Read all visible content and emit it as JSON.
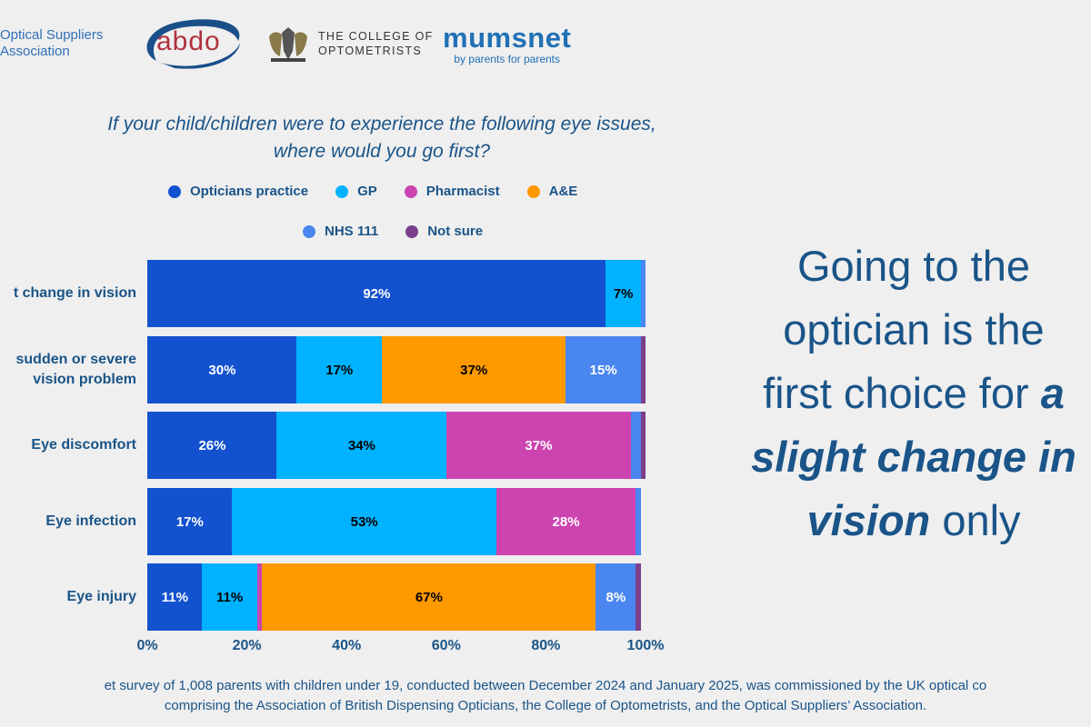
{
  "logos": {
    "osa": [
      "Optical Suppliers",
      "Association"
    ],
    "abdo": "abdo",
    "college": [
      "THE COLLEGE OF",
      "OPTOMETRISTS"
    ],
    "mumsnet": "mumsnet",
    "mumsnet_tagline": "by parents for parents"
  },
  "chart_data": {
    "type": "bar",
    "orientation": "horizontal",
    "stacked": true,
    "title": [
      "If your child/children were to experience the following eye issues,",
      "where would you go first?"
    ],
    "categories": [
      "t change in vision",
      "sudden or severe\nvision problem",
      "Eye discomfort",
      "Eye infection",
      "Eye injury"
    ],
    "series": [
      {
        "name": "Opticians practice",
        "color": "#1352cf",
        "label_color": "#ffffff",
        "values": [
          92,
          30,
          26,
          17,
          11
        ]
      },
      {
        "name": "GP",
        "color": "#00b2ff",
        "label_color": "#000000",
        "values": [
          7,
          17,
          34,
          53,
          11
        ]
      },
      {
        "name": "Pharmacist",
        "color": "#cc44b0",
        "label_color": "#ffffff",
        "values": [
          0,
          0,
          37,
          28,
          1
        ]
      },
      {
        "name": "A&E",
        "color": "#ff9900",
        "label_color": "#000000",
        "values": [
          0,
          37,
          0,
          0,
          67
        ]
      },
      {
        "name": "NHS 111",
        "color": "#4a86f0",
        "label_color": "#ffffff",
        "values": [
          1,
          15,
          2,
          1,
          8
        ]
      },
      {
        "name": "Not sure",
        "color": "#7b3f8c",
        "label_color": "#ffffff",
        "values": [
          0,
          1,
          1,
          0,
          1
        ]
      }
    ],
    "data_labels": [
      [
        "92%",
        "7%",
        "",
        "",
        "",
        ""
      ],
      [
        "30%",
        "17%",
        "",
        "37%",
        "15%",
        ""
      ],
      [
        "26%",
        "34%",
        "37%",
        "",
        "",
        ""
      ],
      [
        "17%",
        "53%",
        "28%",
        "",
        "",
        ""
      ],
      [
        "11%",
        "11%",
        "",
        "67%",
        "8%",
        ""
      ]
    ],
    "xlim": [
      0,
      100
    ],
    "xticks": [
      "0%",
      "20%",
      "40%",
      "60%",
      "80%",
      "100%"
    ],
    "legend_placement": "top",
    "grid": false
  },
  "headline": {
    "lines": [
      {
        "pre": "Going to the",
        "bold": "",
        "post": ""
      },
      {
        "pre": "optician is the",
        "bold": "",
        "post": ""
      },
      {
        "pre": "first choice for ",
        "bold": "a",
        "post": ""
      },
      {
        "pre": "",
        "bold": "slight change in",
        "post": ""
      },
      {
        "pre": "",
        "bold": "vision",
        "post": " only"
      }
    ]
  },
  "footer": [
    "et survey of 1,008 parents with children under 19, conducted between December 2024 and January 2025, was commissioned by the UK optical co",
    "comprising the Association of British Dispensing Opticians, the College of Optometrists, and the Optical Suppliers’ Association."
  ]
}
